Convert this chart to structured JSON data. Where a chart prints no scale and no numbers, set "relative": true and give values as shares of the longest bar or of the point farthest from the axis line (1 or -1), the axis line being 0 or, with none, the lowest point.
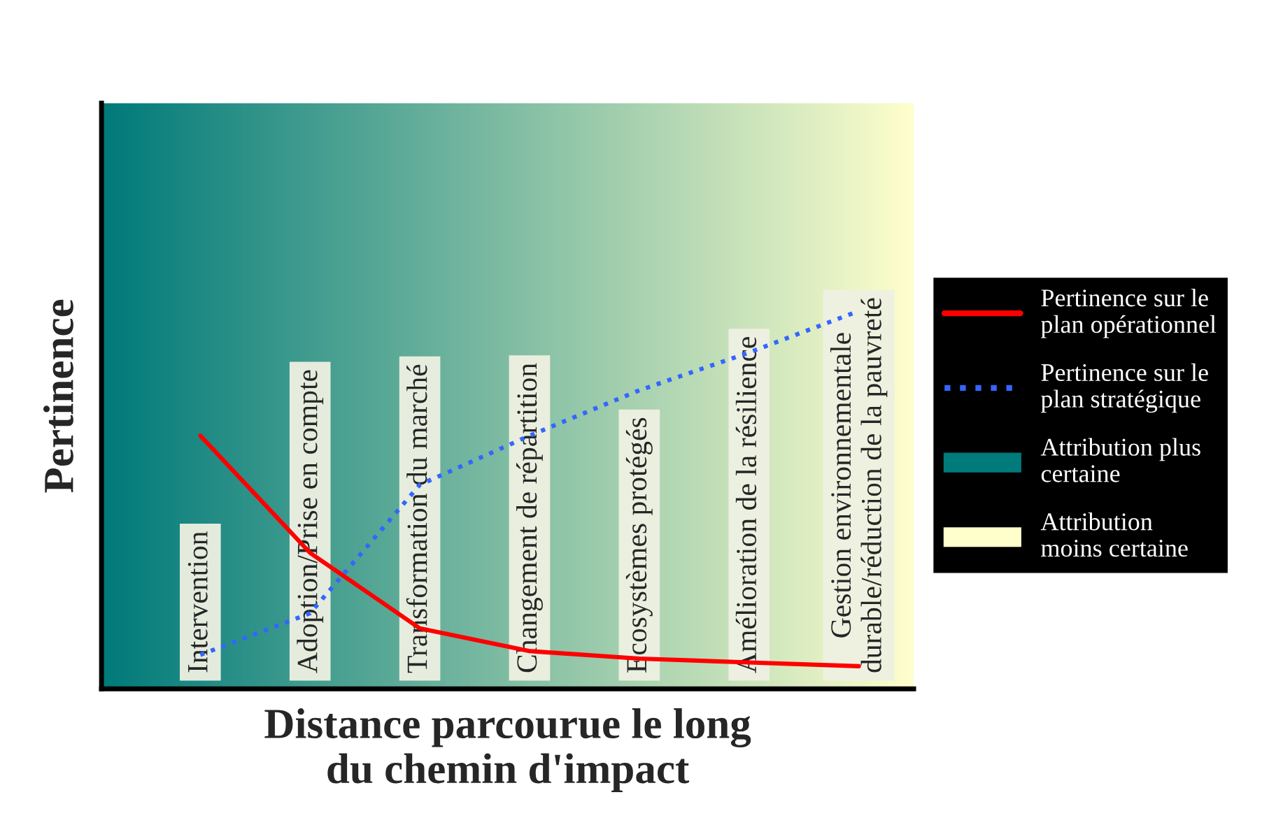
{
  "chart_data": {
    "type": "line",
    "relative": true,
    "ylabel": "Pertinence",
    "xlabel": "Distance parcourue le long\ndu chemin d'impact",
    "categories": [
      "Intervention",
      "Adoption/Prise en compte",
      "Transformation du marché",
      "Changement de répartition",
      "Ecosystèmes protégés",
      "Amélioration de la résilience",
      "Gestion environnementale\ndurable/réduction de la pauvreté"
    ],
    "series": [
      {
        "name": "Pertinence sur le\nplan opérationnel",
        "color": "#ff0000",
        "line_style": "solid",
        "values": [
          0.67,
          0.36,
          0.16,
          0.1,
          0.08,
          0.07,
          0.06
        ]
      },
      {
        "name": "Pertinence sur le\nplan stratégique",
        "color": "#3366ff",
        "line_style": "dotted",
        "values": [
          0.09,
          0.2,
          0.54,
          0.67,
          0.79,
          0.89,
          1.0
        ]
      }
    ],
    "annotations": [
      "Attribution plus\ncertaine",
      "Attribution\nmoins certaine"
    ],
    "legend": "right"
  }
}
